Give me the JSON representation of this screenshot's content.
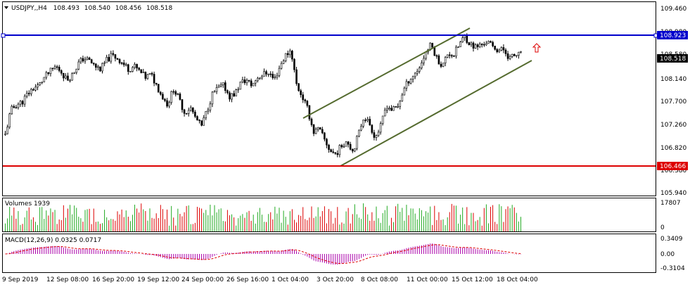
{
  "header": {
    "symbol_label": "USDJPY,,H4",
    "open": "108.493",
    "high": "108.540",
    "low": "108.456",
    "close": "108.518"
  },
  "price_panel": {
    "y_ticks": [
      "109.460",
      "108.980",
      "108.580",
      "108.140",
      "107.700",
      "107.260",
      "106.820",
      "106.380",
      "105.940"
    ],
    "resistance": {
      "value": "108.923",
      "color": "#0000cc"
    },
    "support": {
      "value": "106.466",
      "color": "#dd0000"
    },
    "current_price": "108.518",
    "channel_color": "#556b2f",
    "arrow_icon": "up-arrow-icon",
    "arrow_color": "#dd0000"
  },
  "volume_panel": {
    "label": "Volumes 1939",
    "y_ticks": [
      "17807",
      "0"
    ]
  },
  "macd_panel": {
    "label": "MACD(12,26,9) 0.0325 0.0717",
    "y_ticks": [
      "0.3409",
      "0.00",
      "-0.3104"
    ]
  },
  "x_axis": {
    "labels": [
      "9 Sep 2019",
      "12 Sep 08:00",
      "16 Sep 20:00",
      "19 Sep 12:00",
      "24 Sep 00:00",
      "26 Sep 16:00",
      "1 Oct 04:00",
      "3 Oct 20:00",
      "8 Oct 08:00",
      "11 Oct 00:00",
      "15 Oct 12:00",
      "18 Oct 04:00"
    ]
  },
  "colors": {
    "bull_volume": "#22aa22",
    "bear_volume": "#dd0000",
    "macd_hist": "#aa00aa",
    "macd_signal": "#dd0000",
    "grid_border": "#000000"
  },
  "chart_data": {
    "type": "candlestick",
    "title": "USDJPY,,H4",
    "ylim": [
      105.94,
      109.46
    ],
    "price_path": [
      107.05,
      107.5,
      107.6,
      107.65,
      107.8,
      107.9,
      107.95,
      108.1,
      108.2,
      108.3,
      108.2,
      108.05,
      108.15,
      108.35,
      108.45,
      108.4,
      108.3,
      108.25,
      108.4,
      108.5,
      108.45,
      108.35,
      108.25,
      108.3,
      108.2,
      108.1,
      108.15,
      107.95,
      107.75,
      107.6,
      107.9,
      107.7,
      107.45,
      107.55,
      107.35,
      107.2,
      107.5,
      107.8,
      107.9,
      107.95,
      107.75,
      107.8,
      108.0,
      108.05,
      107.95,
      108.1,
      108.15,
      108.2,
      108.05,
      108.3,
      108.5,
      108.6,
      107.95,
      107.75,
      107.5,
      107.1,
      107.15,
      106.95,
      106.75,
      106.7,
      106.85,
      106.95,
      106.75,
      107.05,
      107.4,
      107.25,
      107.0,
      107.2,
      107.6,
      107.5,
      107.55,
      107.85,
      108.05,
      108.15,
      108.3,
      108.55,
      108.7,
      108.45,
      108.3,
      108.55,
      108.5,
      108.7,
      108.85,
      108.7,
      108.65,
      108.7,
      108.75,
      108.65,
      108.6,
      108.6,
      108.45,
      108.5,
      108.52
    ],
    "horizontal_lines": [
      {
        "price": 108.923,
        "color": "#0000cc"
      },
      {
        "price": 106.466,
        "color": "#dd0000"
      }
    ]
  }
}
